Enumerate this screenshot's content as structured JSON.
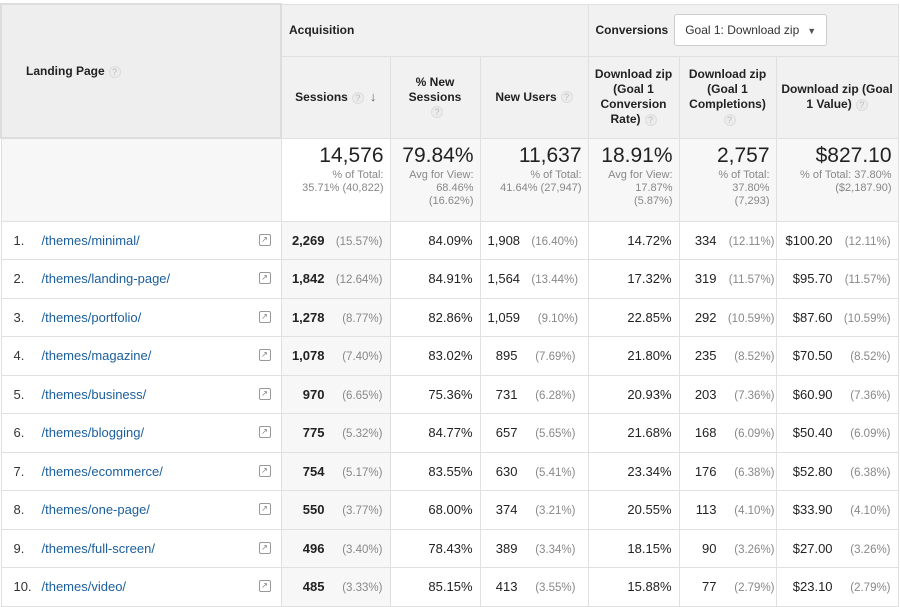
{
  "header": {
    "landing_page": "Landing Page",
    "acquisition": "Acquisition",
    "conversions": "Conversions",
    "goal_select": "Goal 1: Download zip",
    "columns": [
      "Sessions",
      "% New Sessions",
      "New Users",
      "Download zip (Goal 1 Conversion Rate)",
      "Download zip (Goal 1 Completions)",
      "Download zip (Goal 1 Value)"
    ],
    "help": "?",
    "sort_icon": "arrow-down"
  },
  "totals": [
    {
      "value": "14,576",
      "l1": "% of Total:",
      "l2": "35.71% (40,822)"
    },
    {
      "value": "79.84%",
      "l1": "Avg for View:",
      "l2": "68.46%",
      "l3": "(16.62%)"
    },
    {
      "value": "11,637",
      "l1": "% of Total:",
      "l2": "41.64% (27,947)"
    },
    {
      "value": "18.91%",
      "l1": "Avg for View:",
      "l2": "17.87%",
      "l3": "(5.87%)"
    },
    {
      "value": "2,757",
      "l1": "% of Total:",
      "l2": "37.80%",
      "l3": "(7,293)"
    },
    {
      "value": "$827.10",
      "l1": "% of Total: 37.80%",
      "l2": "($2,187.90)"
    }
  ],
  "rows": [
    {
      "n": "1.",
      "page": "/themes/minimal/",
      "sessions": "2,269",
      "sp": "(15.57%)",
      "ns": "84.09%",
      "nu": "1,908",
      "nup": "(16.40%)",
      "cr": "14.72%",
      "c": "334",
      "cp": "(12.11%)",
      "v": "$100.20",
      "vp": "(12.11%)"
    },
    {
      "n": "2.",
      "page": "/themes/landing-page/",
      "sessions": "1,842",
      "sp": "(12.64%)",
      "ns": "84.91%",
      "nu": "1,564",
      "nup": "(13.44%)",
      "cr": "17.32%",
      "c": "319",
      "cp": "(11.57%)",
      "v": "$95.70",
      "vp": "(11.57%)"
    },
    {
      "n": "3.",
      "page": "/themes/portfolio/",
      "sessions": "1,278",
      "sp": "(8.77%)",
      "ns": "82.86%",
      "nu": "1,059",
      "nup": "(9.10%)",
      "cr": "22.85%",
      "c": "292",
      "cp": "(10.59%)",
      "v": "$87.60",
      "vp": "(10.59%)"
    },
    {
      "n": "4.",
      "page": "/themes/magazine/",
      "sessions": "1,078",
      "sp": "(7.40%)",
      "ns": "83.02%",
      "nu": "895",
      "nup": "(7.69%)",
      "cr": "21.80%",
      "c": "235",
      "cp": "(8.52%)",
      "v": "$70.50",
      "vp": "(8.52%)"
    },
    {
      "n": "5.",
      "page": "/themes/business/",
      "sessions": "970",
      "sp": "(6.65%)",
      "ns": "75.36%",
      "nu": "731",
      "nup": "(6.28%)",
      "cr": "20.93%",
      "c": "203",
      "cp": "(7.36%)",
      "v": "$60.90",
      "vp": "(7.36%)"
    },
    {
      "n": "6.",
      "page": "/themes/blogging/",
      "sessions": "775",
      "sp": "(5.32%)",
      "ns": "84.77%",
      "nu": "657",
      "nup": "(5.65%)",
      "cr": "21.68%",
      "c": "168",
      "cp": "(6.09%)",
      "v": "$50.40",
      "vp": "(6.09%)"
    },
    {
      "n": "7.",
      "page": "/themes/ecommerce/",
      "sessions": "754",
      "sp": "(5.17%)",
      "ns": "83.55%",
      "nu": "630",
      "nup": "(5.41%)",
      "cr": "23.34%",
      "c": "176",
      "cp": "(6.38%)",
      "v": "$52.80",
      "vp": "(6.38%)"
    },
    {
      "n": "8.",
      "page": "/themes/one-page/",
      "sessions": "550",
      "sp": "(3.77%)",
      "ns": "68.00%",
      "nu": "374",
      "nup": "(3.21%)",
      "cr": "20.55%",
      "c": "113",
      "cp": "(4.10%)",
      "v": "$33.90",
      "vp": "(4.10%)"
    },
    {
      "n": "9.",
      "page": "/themes/full-screen/",
      "sessions": "496",
      "sp": "(3.40%)",
      "ns": "78.43%",
      "nu": "389",
      "nup": "(3.34%)",
      "cr": "18.15%",
      "c": "90",
      "cp": "(3.26%)",
      "v": "$27.00",
      "vp": "(3.26%)"
    },
    {
      "n": "10.",
      "page": "/themes/video/",
      "sessions": "485",
      "sp": "(3.33%)",
      "ns": "85.15%",
      "nu": "413",
      "nup": "(3.55%)",
      "cr": "15.88%",
      "c": "77",
      "cp": "(2.79%)",
      "v": "$23.10",
      "vp": "(2.79%)"
    }
  ],
  "colors": {
    "link": "#1a5e9c",
    "header_bg": "#f1f1f1"
  }
}
